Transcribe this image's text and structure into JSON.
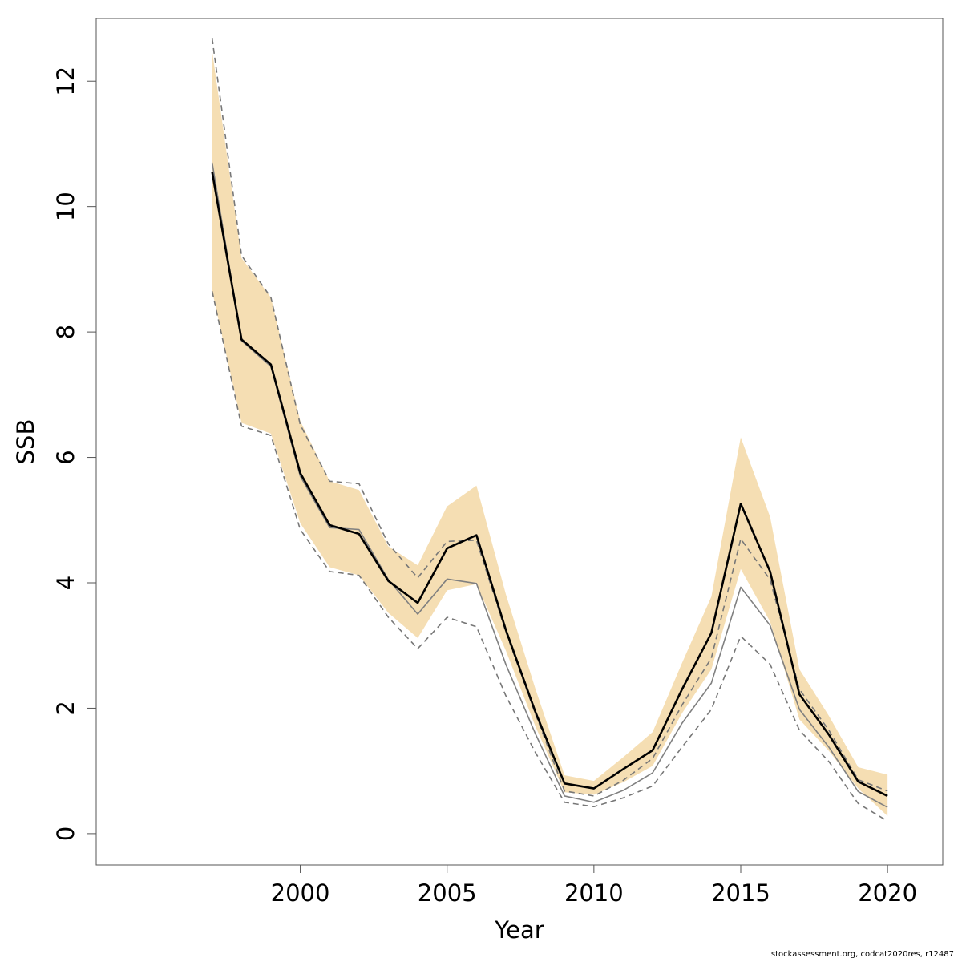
{
  "chart_data": {
    "type": "line",
    "title": "",
    "xlabel": "Year",
    "ylabel": "SSB",
    "x": [
      1997,
      1998,
      1999,
      2000,
      2001,
      2002,
      2003,
      2004,
      2005,
      2006,
      2007,
      2008,
      2009,
      2010,
      2011,
      2012,
      2013,
      2014,
      2015,
      2016,
      2017,
      2018,
      2019,
      2020
    ],
    "xlim": [
      1993.05,
      2021.88
    ],
    "ylim": [
      -0.5,
      13.0
    ],
    "x_ticks": [
      2000,
      2005,
      2010,
      2015,
      2020
    ],
    "y_ticks": [
      0,
      2,
      4,
      6,
      8,
      10,
      12
    ],
    "grid": false,
    "legend": "none",
    "series": [
      {
        "role": "band",
        "upper": [
          12.48,
          9.18,
          8.55,
          6.58,
          5.62,
          5.48,
          4.58,
          4.28,
          5.22,
          5.55,
          3.82,
          2.32,
          0.93,
          0.84,
          1.22,
          1.62,
          2.72,
          3.78,
          6.32,
          5.05,
          2.62,
          1.88,
          1.06,
          0.94
        ],
        "lower": [
          8.65,
          6.55,
          6.38,
          4.95,
          4.25,
          4.12,
          3.52,
          3.12,
          3.88,
          3.98,
          2.92,
          1.72,
          0.66,
          0.62,
          0.82,
          1.08,
          1.92,
          2.62,
          4.22,
          3.38,
          1.82,
          1.32,
          0.72,
          0.28
        ],
        "color": "#f5deb3"
      },
      {
        "role": "dashed",
        "values": [
          12.68,
          9.22,
          8.55,
          6.52,
          5.62,
          5.58,
          4.62,
          4.08,
          4.66,
          4.68,
          3.22,
          1.92,
          0.68,
          0.6,
          0.85,
          1.2,
          2.05,
          2.8,
          4.7,
          4.05,
          2.3,
          1.65,
          0.86,
          0.68
        ],
        "color": "#777777"
      },
      {
        "role": "dashed",
        "values": [
          8.65,
          6.5,
          6.35,
          4.85,
          4.18,
          4.12,
          3.45,
          2.95,
          3.45,
          3.3,
          2.2,
          1.3,
          0.5,
          0.43,
          0.57,
          0.76,
          1.38,
          1.98,
          3.15,
          2.7,
          1.65,
          1.15,
          0.48,
          0.2
        ],
        "color": "#777777"
      },
      {
        "role": "thin",
        "values": [
          10.7,
          7.86,
          7.45,
          5.7,
          4.88,
          4.85,
          4.05,
          3.5,
          4.06,
          3.99,
          2.7,
          1.6,
          0.6,
          0.5,
          0.69,
          0.97,
          1.76,
          2.4,
          3.93,
          3.32,
          1.98,
          1.38,
          0.67,
          0.42
        ],
        "color": "#808080"
      },
      {
        "role": "main",
        "values": [
          10.55,
          7.88,
          7.48,
          5.75,
          4.92,
          4.78,
          4.03,
          3.68,
          4.55,
          4.76,
          3.25,
          1.95,
          0.8,
          0.72,
          1.03,
          1.33,
          2.3,
          3.2,
          5.26,
          4.18,
          2.22,
          1.58,
          0.83,
          0.6
        ],
        "color": "#000000"
      }
    ]
  },
  "footnote": "stockassessment.org, codcat2020res, r12487"
}
